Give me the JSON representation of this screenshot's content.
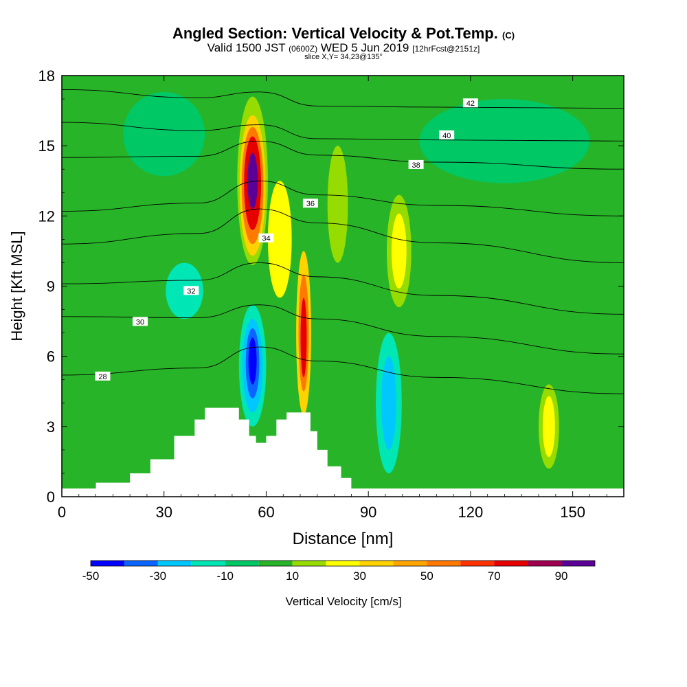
{
  "header": {
    "title": "Angled Section: Vertical Velocity & Pot.Temp.",
    "title_tag": "(C)",
    "subtitle_a": "Valid 1500 JST",
    "subtitle_b": "(0600Z)",
    "subtitle_c": "WED 5 Jun 2019",
    "subtitle_d": "[12hrFcst@2151z]",
    "slice": "slice X,Y= 34,23@135°"
  },
  "chart_data": {
    "type": "heatmap",
    "xlabel": "Distance [nm]",
    "ylabel": "Height [Kft MSL]",
    "xlim": [
      0,
      165
    ],
    "ylim": [
      0,
      18
    ],
    "xticks": [
      0,
      30,
      60,
      90,
      120,
      150
    ],
    "yticks": [
      0,
      3,
      6,
      9,
      12,
      15,
      18
    ],
    "colorbar": {
      "label": "Vertical Velocity [cm/s]",
      "tick_values": [
        -50,
        -30,
        -10,
        10,
        30,
        50,
        70,
        90
      ],
      "bins": [
        {
          "from": -50,
          "to": -40,
          "color": "#0000ff"
        },
        {
          "from": -40,
          "to": -30,
          "color": "#0a64ff"
        },
        {
          "from": -30,
          "to": -20,
          "color": "#00c8ff"
        },
        {
          "from": -20,
          "to": -10,
          "color": "#00e6b4"
        },
        {
          "from": -10,
          "to": 0,
          "color": "#00c864"
        },
        {
          "from": 0,
          "to": 10,
          "color": "#28b428"
        },
        {
          "from": 10,
          "to": 20,
          "color": "#96dc00"
        },
        {
          "from": 20,
          "to": 30,
          "color": "#ffff00"
        },
        {
          "from": 30,
          "to": 40,
          "color": "#ffd200"
        },
        {
          "from": 40,
          "to": 50,
          "color": "#ffa500"
        },
        {
          "from": 50,
          "to": 60,
          "color": "#ff7800"
        },
        {
          "from": 60,
          "to": 70,
          "color": "#ff3200"
        },
        {
          "from": 70,
          "to": 80,
          "color": "#e60000"
        },
        {
          "from": 80,
          "to": 90,
          "color": "#a00050"
        },
        {
          "from": 90,
          "to": 100,
          "color": "#5a0096"
        }
      ]
    },
    "background_value": 0,
    "cells": [
      {
        "x": 56,
        "y": 13.5,
        "rx": 4.5,
        "ry": 3.6,
        "v": 15
      },
      {
        "x": 56,
        "y": 13.3,
        "rx": 3.8,
        "ry": 3.0,
        "v": 35
      },
      {
        "x": 56,
        "y": 13.3,
        "rx": 3.2,
        "ry": 2.5,
        "v": 55
      },
      {
        "x": 56,
        "y": 13.4,
        "rx": 2.5,
        "ry": 2.0,
        "v": 75
      },
      {
        "x": 56,
        "y": 13.5,
        "rx": 1.5,
        "ry": 1.2,
        "v": 95
      },
      {
        "x": 64,
        "y": 11,
        "rx": 3.5,
        "ry": 2.5,
        "v": 25
      },
      {
        "x": 71,
        "y": 7,
        "rx": 2.2,
        "ry": 3.5,
        "v": 35
      },
      {
        "x": 71,
        "y": 7,
        "rx": 1.5,
        "ry": 2.5,
        "v": 55
      },
      {
        "x": 71,
        "y": 6.8,
        "rx": 0.9,
        "ry": 1.7,
        "v": 72
      },
      {
        "x": 56,
        "y": 5.6,
        "rx": 4.0,
        "ry": 2.6,
        "v": -15
      },
      {
        "x": 56,
        "y": 5.6,
        "rx": 3.0,
        "ry": 2.0,
        "v": -25
      },
      {
        "x": 56,
        "y": 5.7,
        "rx": 2.0,
        "ry": 1.5,
        "v": -35
      },
      {
        "x": 56,
        "y": 5.8,
        "rx": 1.2,
        "ry": 1.0,
        "v": -45
      },
      {
        "x": 36,
        "y": 8.8,
        "rx": 5.5,
        "ry": 1.2,
        "v": -15
      },
      {
        "x": 96,
        "y": 4,
        "rx": 3.8,
        "ry": 3.0,
        "v": -15
      },
      {
        "x": 96,
        "y": 4,
        "rx": 2.2,
        "ry": 2.0,
        "v": -25
      },
      {
        "x": 99,
        "y": 10.5,
        "rx": 3.6,
        "ry": 2.4,
        "v": 15
      },
      {
        "x": 99,
        "y": 10.5,
        "rx": 2.2,
        "ry": 1.6,
        "v": 25
      },
      {
        "x": 143,
        "y": 3,
        "rx": 3.0,
        "ry": 1.8,
        "v": 15
      },
      {
        "x": 143,
        "y": 3,
        "rx": 1.8,
        "ry": 1.3,
        "v": 25
      },
      {
        "x": 81,
        "y": 12.5,
        "rx": 3.0,
        "ry": 2.5,
        "v": 15
      },
      {
        "x": 130,
        "y": 15.2,
        "rx": 25.0,
        "ry": 1.8,
        "v": -5
      },
      {
        "x": 30,
        "y": 15.5,
        "rx": 12.0,
        "ry": 1.8,
        "v": -5
      }
    ],
    "terrain": [
      [
        10,
        0.6
      ],
      [
        20,
        1.0
      ],
      [
        26,
        1.6
      ],
      [
        33,
        2.6
      ],
      [
        39,
        3.3
      ],
      [
        42,
        3.8
      ],
      [
        50,
        3.8
      ],
      [
        52,
        3.3
      ],
      [
        55,
        2.6
      ],
      [
        57,
        2.3
      ],
      [
        60,
        2.6
      ],
      [
        63,
        3.3
      ],
      [
        66,
        3.6
      ],
      [
        70,
        3.6
      ],
      [
        73,
        2.8
      ],
      [
        75,
        2.0
      ],
      [
        78,
        1.3
      ],
      [
        82,
        0.8
      ],
      [
        85,
        0.3
      ],
      [
        88,
        0.3
      ]
    ],
    "isentropes": [
      {
        "label": "28",
        "y_left": 5.2,
        "y_mid": 5.8,
        "y_right": 4.4
      },
      {
        "label": "30",
        "y_left": 7.7,
        "y_mid": 7.6,
        "y_right": 6.1
      },
      {
        "label": "32",
        "y_left": 9.1,
        "y_mid": 9.4,
        "y_right": 7.8
      },
      {
        "label": "34",
        "y_left": 10.8,
        "y_mid": 11.7,
        "y_right": 10.0
      },
      {
        "label": "36",
        "y_left": 12.2,
        "y_mid": 12.9,
        "y_right": 12.0
      },
      {
        "label": "38",
        "y_left": 14.5,
        "y_mid": 14.6,
        "y_right": 14.0
      },
      {
        "label": "40",
        "y_left": 16.0,
        "y_mid": 15.3,
        "y_right": 15.2
      },
      {
        "label": "42",
        "y_left": 17.4,
        "y_mid": 16.7,
        "y_right": 16.6
      }
    ]
  }
}
